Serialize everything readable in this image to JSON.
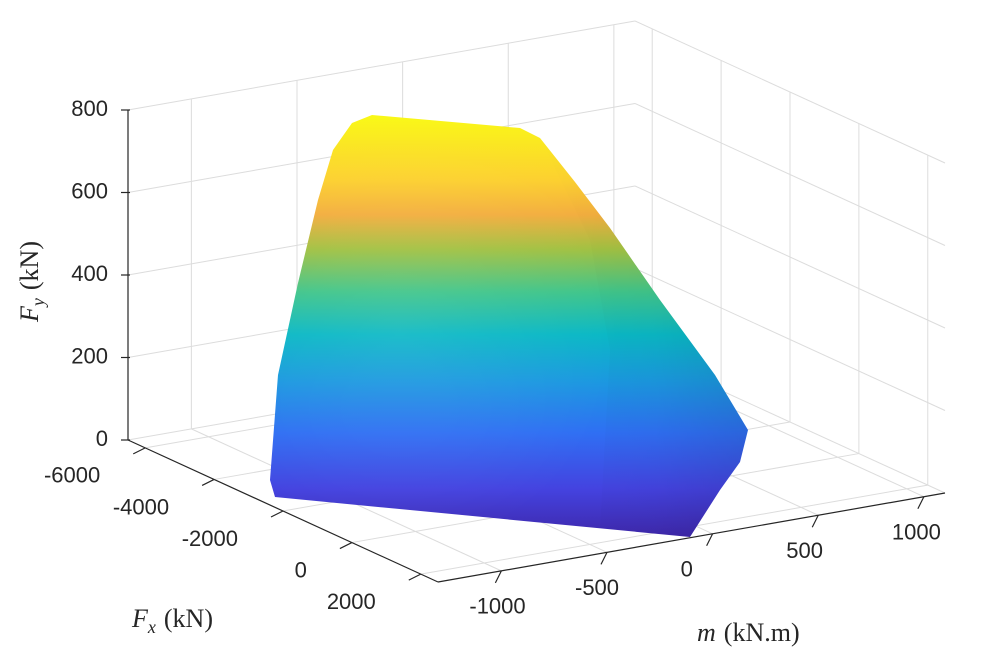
{
  "chart_data": {
    "type": "surface-3d",
    "title": "",
    "axes": {
      "x": {
        "label_symbol": "F",
        "label_sub": "x",
        "label_unit": "(kN)",
        "ticks": [
          "-6000",
          "-4000",
          "-2000",
          "0",
          "2000"
        ],
        "tick_values": [
          -6000,
          -4000,
          -2000,
          0,
          2000
        ],
        "range": [
          -6500,
          2500
        ]
      },
      "y": {
        "label_symbol": "m",
        "label_unit": "(kN.m)",
        "ticks": [
          "-1000",
          "-500",
          "0",
          "500",
          "1000"
        ],
        "tick_values": [
          -1000,
          -500,
          0,
          500,
          1000
        ],
        "range": [
          -1300,
          1100
        ]
      },
      "z": {
        "label_symbol": "F",
        "label_sub": "y",
        "label_unit": "(kN)",
        "ticks": [
          "0",
          "200",
          "400",
          "600",
          "800"
        ],
        "tick_values": [
          0,
          200,
          400,
          600,
          800
        ],
        "range": [
          0,
          800
        ]
      }
    },
    "grid": true,
    "colormap": "parula",
    "surface": {
      "description_values": {
        "Fy_min": 0,
        "Fy_max": 780,
        "Fx_range_at_base": [
          -5800,
          2300
        ],
        "m_range_at_base": [
          -1050,
          950
        ]
      }
    }
  }
}
